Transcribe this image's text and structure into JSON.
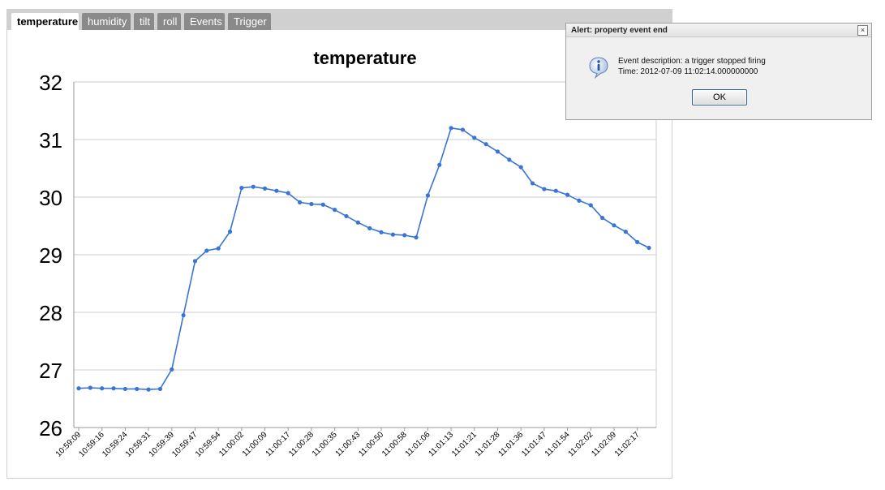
{
  "tabs": [
    {
      "label": "temperature",
      "active": true
    },
    {
      "label": "humidity",
      "active": false
    },
    {
      "label": "tilt",
      "active": false
    },
    {
      "label": "roll",
      "active": false
    },
    {
      "label": "Events",
      "active": false
    },
    {
      "label": "Trigger",
      "active": false
    }
  ],
  "chart_data": {
    "type": "line",
    "title": "temperature",
    "xlabel": "",
    "ylabel": "",
    "ylim": [
      26,
      32
    ],
    "yticks": [
      26,
      27,
      28,
      29,
      30,
      31,
      32
    ],
    "grid": true,
    "legend": "none",
    "line_color": "#3a74d4",
    "x_tick_labels": [
      "10:59:09",
      "10:59:16",
      "10:59:24",
      "10:59:31",
      "10:59:39",
      "10:59:47",
      "10:59:54",
      "11:00:02",
      "11:00:09",
      "11:00:17",
      "11:00:28",
      "11:00:35",
      "11:00:43",
      "11:00:50",
      "11:00:58",
      "11:01:06",
      "11:01:13",
      "11:01:21",
      "11:01:28",
      "11:01:36",
      "11:01:47",
      "11:01:54",
      "11:02:02",
      "11:02:09",
      "11:02:17"
    ],
    "values": [
      26.68,
      26.69,
      26.68,
      26.68,
      26.67,
      26.67,
      26.66,
      26.67,
      27.01,
      27.95,
      28.89,
      29.07,
      29.11,
      29.4,
      30.16,
      30.18,
      30.15,
      30.11,
      30.07,
      29.91,
      29.88,
      29.87,
      29.78,
      29.67,
      29.56,
      29.46,
      29.39,
      29.35,
      29.34,
      29.3,
      30.03,
      30.56,
      31.2,
      31.17,
      31.03,
      30.92,
      30.79,
      30.65,
      30.52,
      30.24,
      30.14,
      30.11,
      30.04,
      29.94,
      29.86,
      29.64,
      29.51,
      29.4,
      29.22,
      29.12
    ]
  },
  "alert": {
    "title": "Alert: property event end",
    "close_glyph": "×",
    "description": "Event description: a trigger stopped firing",
    "time": "Time: 2012-07-09 11:02:14.000000000",
    "ok_label": "OK",
    "icon": "info-icon"
  }
}
